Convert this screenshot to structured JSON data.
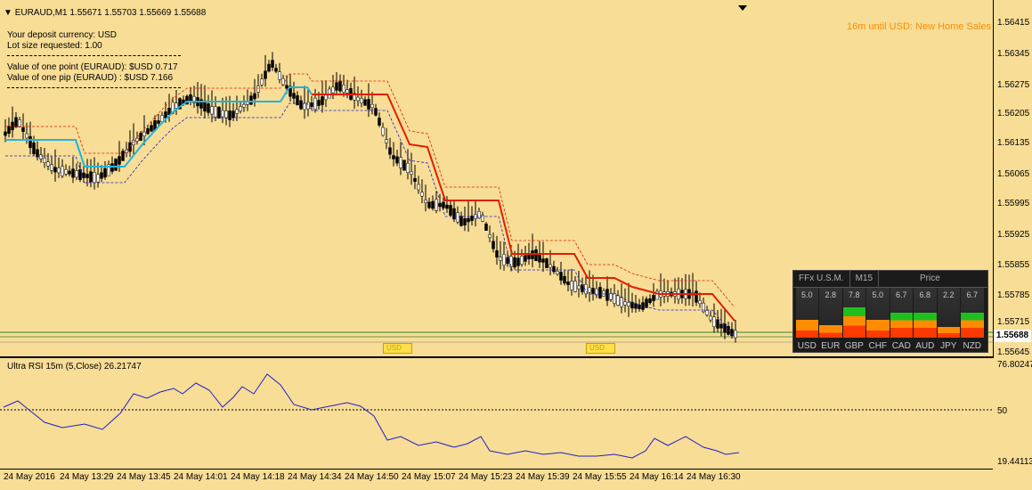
{
  "header": {
    "symbol_label": "EURAUD,M1  1.55671 1.55703 1.55669 1.55688"
  },
  "info_box": {
    "lines": [
      "Your deposit currency: USD",
      "Lot size requested: 1.00",
      "Value of one point (EURAUD):  $USD 0.717",
      "Value of one pip    (EURAUD) : $USD 7.166"
    ]
  },
  "news": "16m until USD: New Home Sales",
  "price_axis": [
    "1.56415",
    "1.56345",
    "1.56275",
    "1.56205",
    "1.56135",
    "1.56065",
    "1.55995",
    "1.55925",
    "1.55855",
    "1.55785",
    "1.55715",
    "1.55645"
  ],
  "current_price": "1.55688",
  "rsi": {
    "label": "Ultra RSI 15m (5,Close) 26.21747",
    "axis": [
      "76.80247",
      "50",
      "19.44113"
    ]
  },
  "time_axis": [
    "24 May 2016",
    "24 May 13:29",
    "24 May 13:45",
    "24 May 14:01",
    "24 May 14:18",
    "24 May 14:34",
    "24 May 14:50",
    "24 May 15:07",
    "24 May 15:23",
    "24 May 15:39",
    "24 May 15:55",
    "24 May 16:14",
    "24 May 16:30"
  ],
  "markers": [
    "USD",
    "USD"
  ],
  "panel": {
    "tabs": [
      "FFx U.S.M.",
      "M15",
      "Price"
    ],
    "values": [
      "5.0",
      "2.8",
      "7.8",
      "5.0",
      "6.7",
      "6.8",
      "2.2",
      "6.7"
    ],
    "currencies": [
      "USD",
      "EUR",
      "GBP",
      "CHF",
      "CAD",
      "AUD",
      "JPY",
      "NZD"
    ],
    "levels": [
      0.5,
      0.35,
      0.85,
      0.5,
      0.7,
      0.7,
      0.3,
      0.7
    ],
    "colors": {
      "strong": "#1fbf1f",
      "weak": "#ff3a00",
      "mid": "#ff8c00"
    }
  },
  "colors": {
    "background": "#f7dd96",
    "bull": "#ffffff",
    "bear": "#000000",
    "trend_up": "#1fb4e0",
    "trend_down": "#e21e00",
    "band_dash": "#e21e00",
    "rsi_line": "#1f1fc8",
    "price_line": "#2a8a2a"
  }
}
